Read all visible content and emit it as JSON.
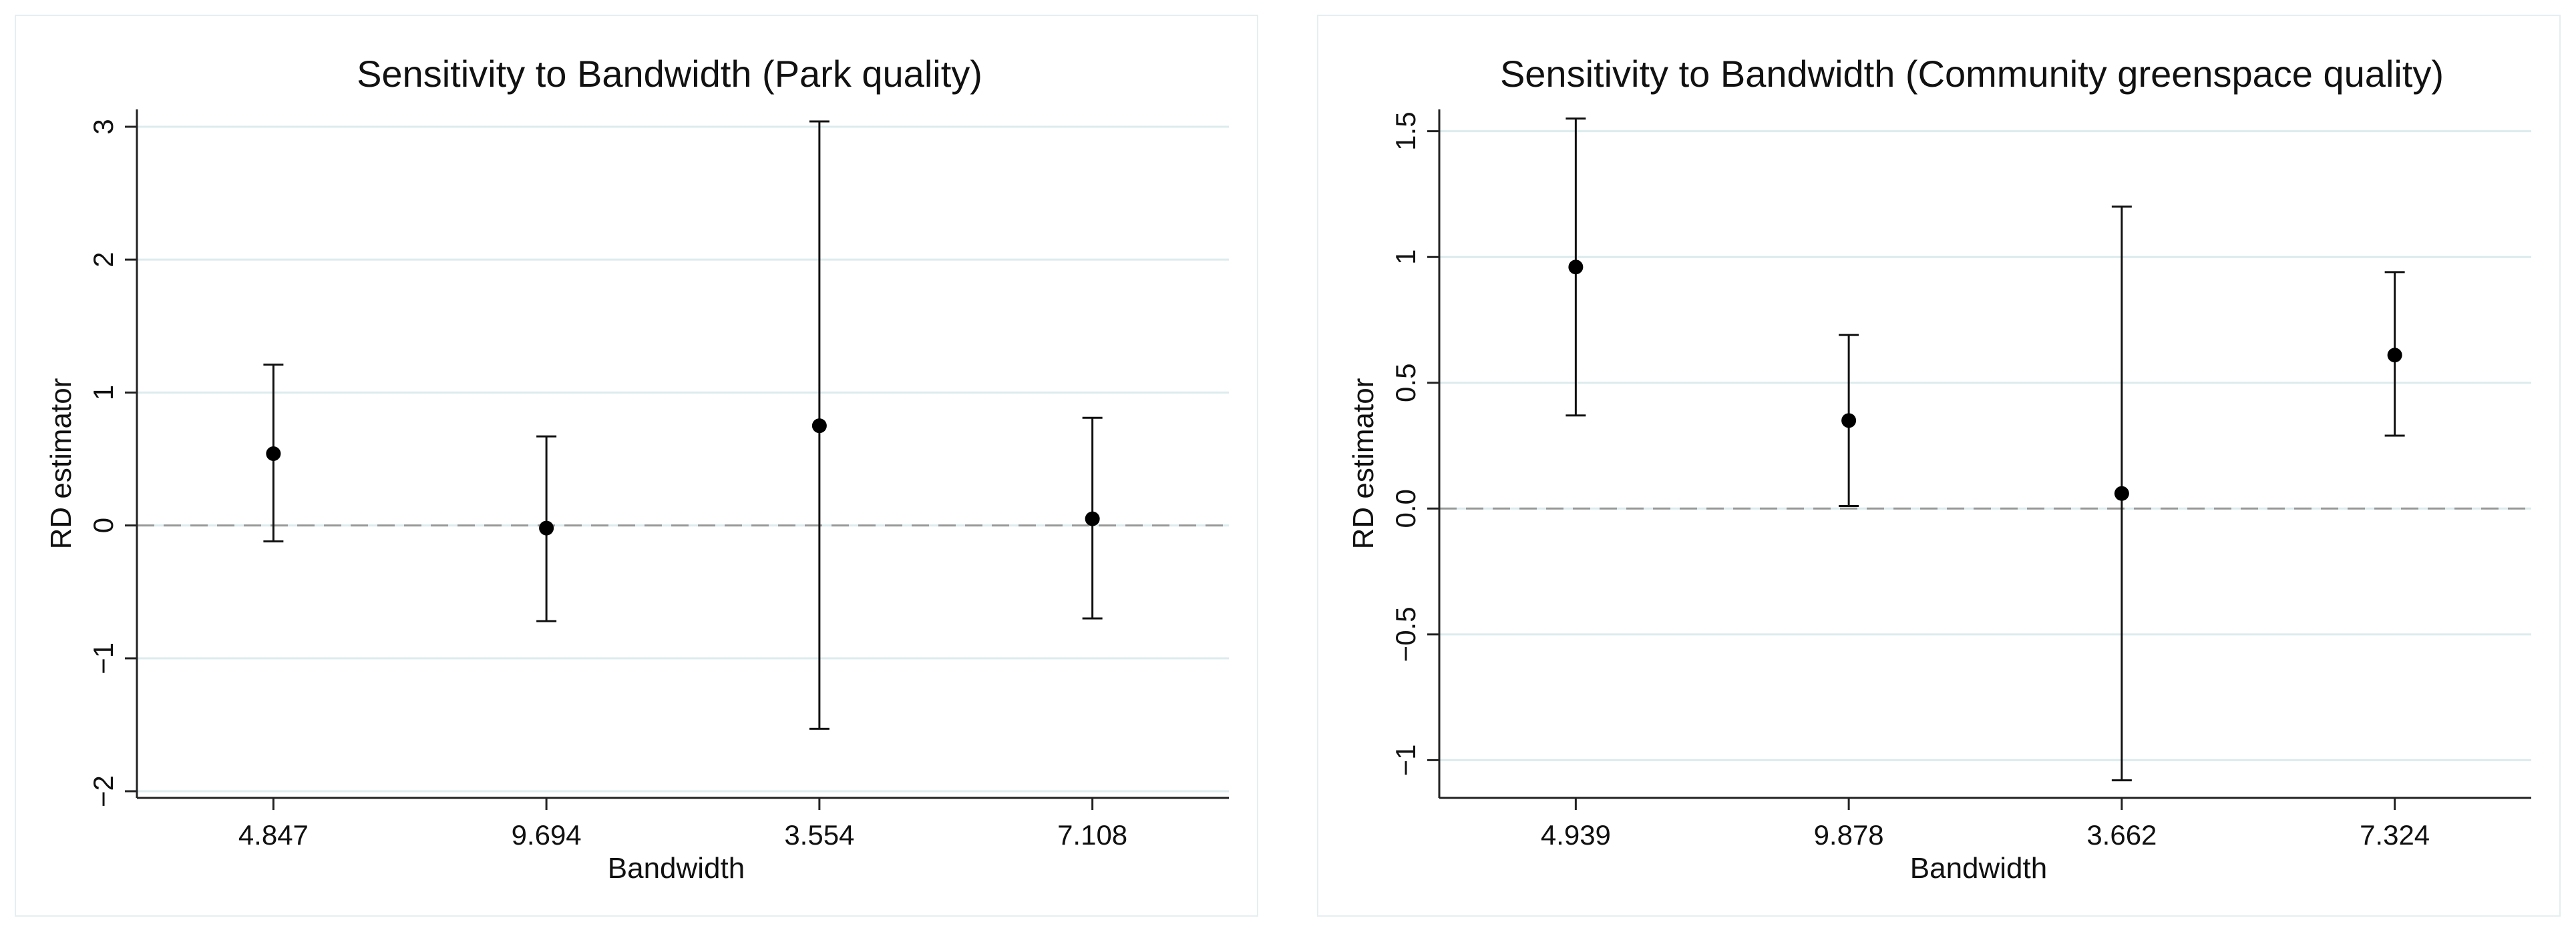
{
  "chart_data": [
    {
      "type": "scatter",
      "title": "Sensitivity to Bandwidth (Park quality)",
      "xlabel": "Bandwidth",
      "ylabel": "RD estimator",
      "categories": [
        "4.847",
        "9.694",
        "3.554",
        "7.108"
      ],
      "estimates": [
        0.54,
        -0.02,
        0.75,
        0.05
      ],
      "ci_lower": [
        -0.12,
        -0.72,
        -1.53,
        -0.7
      ],
      "ci_upper": [
        1.21,
        0.67,
        3.04,
        0.81
      ],
      "y_ticks": [
        -2,
        -1,
        0,
        1,
        2,
        3
      ],
      "y_tick_labels": [
        "−2",
        "−1",
        "0",
        "1",
        "2",
        "3"
      ],
      "ylim": [
        -2.05,
        3.08
      ],
      "reference_line": 0,
      "grid": true
    },
    {
      "type": "scatter",
      "title": "Sensitivity to Bandwidth (Community greenspace quality)",
      "xlabel": "Bandwidth",
      "ylabel": "RD estimator",
      "categories": [
        "4.939",
        "9.878",
        "3.662",
        "7.324"
      ],
      "estimates": [
        0.96,
        0.35,
        0.06,
        0.61
      ],
      "ci_lower": [
        0.37,
        0.01,
        -1.08,
        0.29
      ],
      "ci_upper": [
        1.55,
        0.69,
        1.2,
        0.94
      ],
      "y_ticks": [
        -1,
        -0.5,
        0,
        0.5,
        1,
        1.5
      ],
      "y_tick_labels": [
        "−1",
        "−0.5",
        "0.0",
        "0.5",
        "1",
        "1.5"
      ],
      "ylim": [
        -1.15,
        1.56
      ],
      "reference_line": 0,
      "grid": true
    }
  ]
}
